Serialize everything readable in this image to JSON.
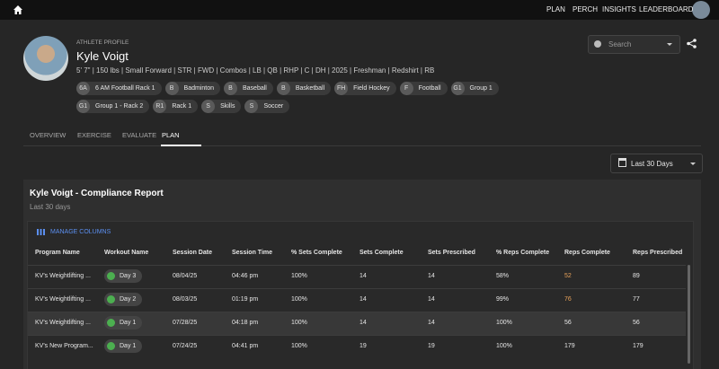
{
  "nav": {
    "items": [
      "PLAN",
      "PERCH",
      "INSIGHTS",
      "LEADERBOARD"
    ]
  },
  "profile": {
    "label": "ATHLETE PROFILE",
    "name": "Kyle Voigt",
    "details": "5' 7\" | 150 lbs | Small Forward | STR | FWD | Combos | LB | QB | RHP | C | DH | 2025 | Freshman | Redshirt | RB",
    "tags": [
      {
        "initials": "6A",
        "label": "6 AM Football Rack 1"
      },
      {
        "initials": "B",
        "label": "Badminton"
      },
      {
        "initials": "B",
        "label": "Baseball"
      },
      {
        "initials": "B",
        "label": "Basketball"
      },
      {
        "initials": "FH",
        "label": "Field Hockey"
      },
      {
        "initials": "F",
        "label": "Football"
      },
      {
        "initials": "G1",
        "label": "Group 1"
      },
      {
        "initials": "G1",
        "label": "Group 1 - Rack 2"
      },
      {
        "initials": "R1",
        "label": "Rack 1"
      },
      {
        "initials": "S",
        "label": "Skills"
      },
      {
        "initials": "S",
        "label": "Soccer"
      }
    ]
  },
  "search": {
    "placeholder": "Search"
  },
  "tabs": {
    "items": [
      "OVERVIEW",
      "EXERCISE",
      "EVALUATE",
      "PLAN"
    ],
    "active": 3
  },
  "date_filter": "Last 30 Days",
  "report": {
    "title": "Kyle Voigt - Compliance Report",
    "subtitle": "Last 30 days",
    "manage_columns": "MANAGE COLUMNS",
    "table": {
      "columns": [
        "Program Name",
        "Workout Name",
        "Session Date",
        "Session Time",
        "% Sets Complete",
        "Sets Complete",
        "Sets Prescribed",
        "% Reps Complete",
        "Reps Complete",
        "Reps Prescribed"
      ],
      "rows": [
        [
          "KV's Weightlifting ...",
          "Day 3",
          "08/04/25",
          "04:46 pm",
          "100%",
          "14",
          "14",
          "58%",
          "52",
          "89"
        ],
        [
          "KV's Weightlifting ...",
          "Day 2",
          "08/03/25",
          "01:19 pm",
          "100%",
          "14",
          "14",
          "99%",
          "76",
          "77"
        ],
        [
          "KV's Weightlifting ...",
          "Day 1",
          "07/28/25",
          "04:18 pm",
          "100%",
          "14",
          "14",
          "100%",
          "56",
          "56"
        ],
        [
          "KV's New Program...",
          "Day 1",
          "07/24/25",
          "04:41 pm",
          "100%",
          "19",
          "19",
          "100%",
          "179",
          "179"
        ]
      ]
    }
  }
}
